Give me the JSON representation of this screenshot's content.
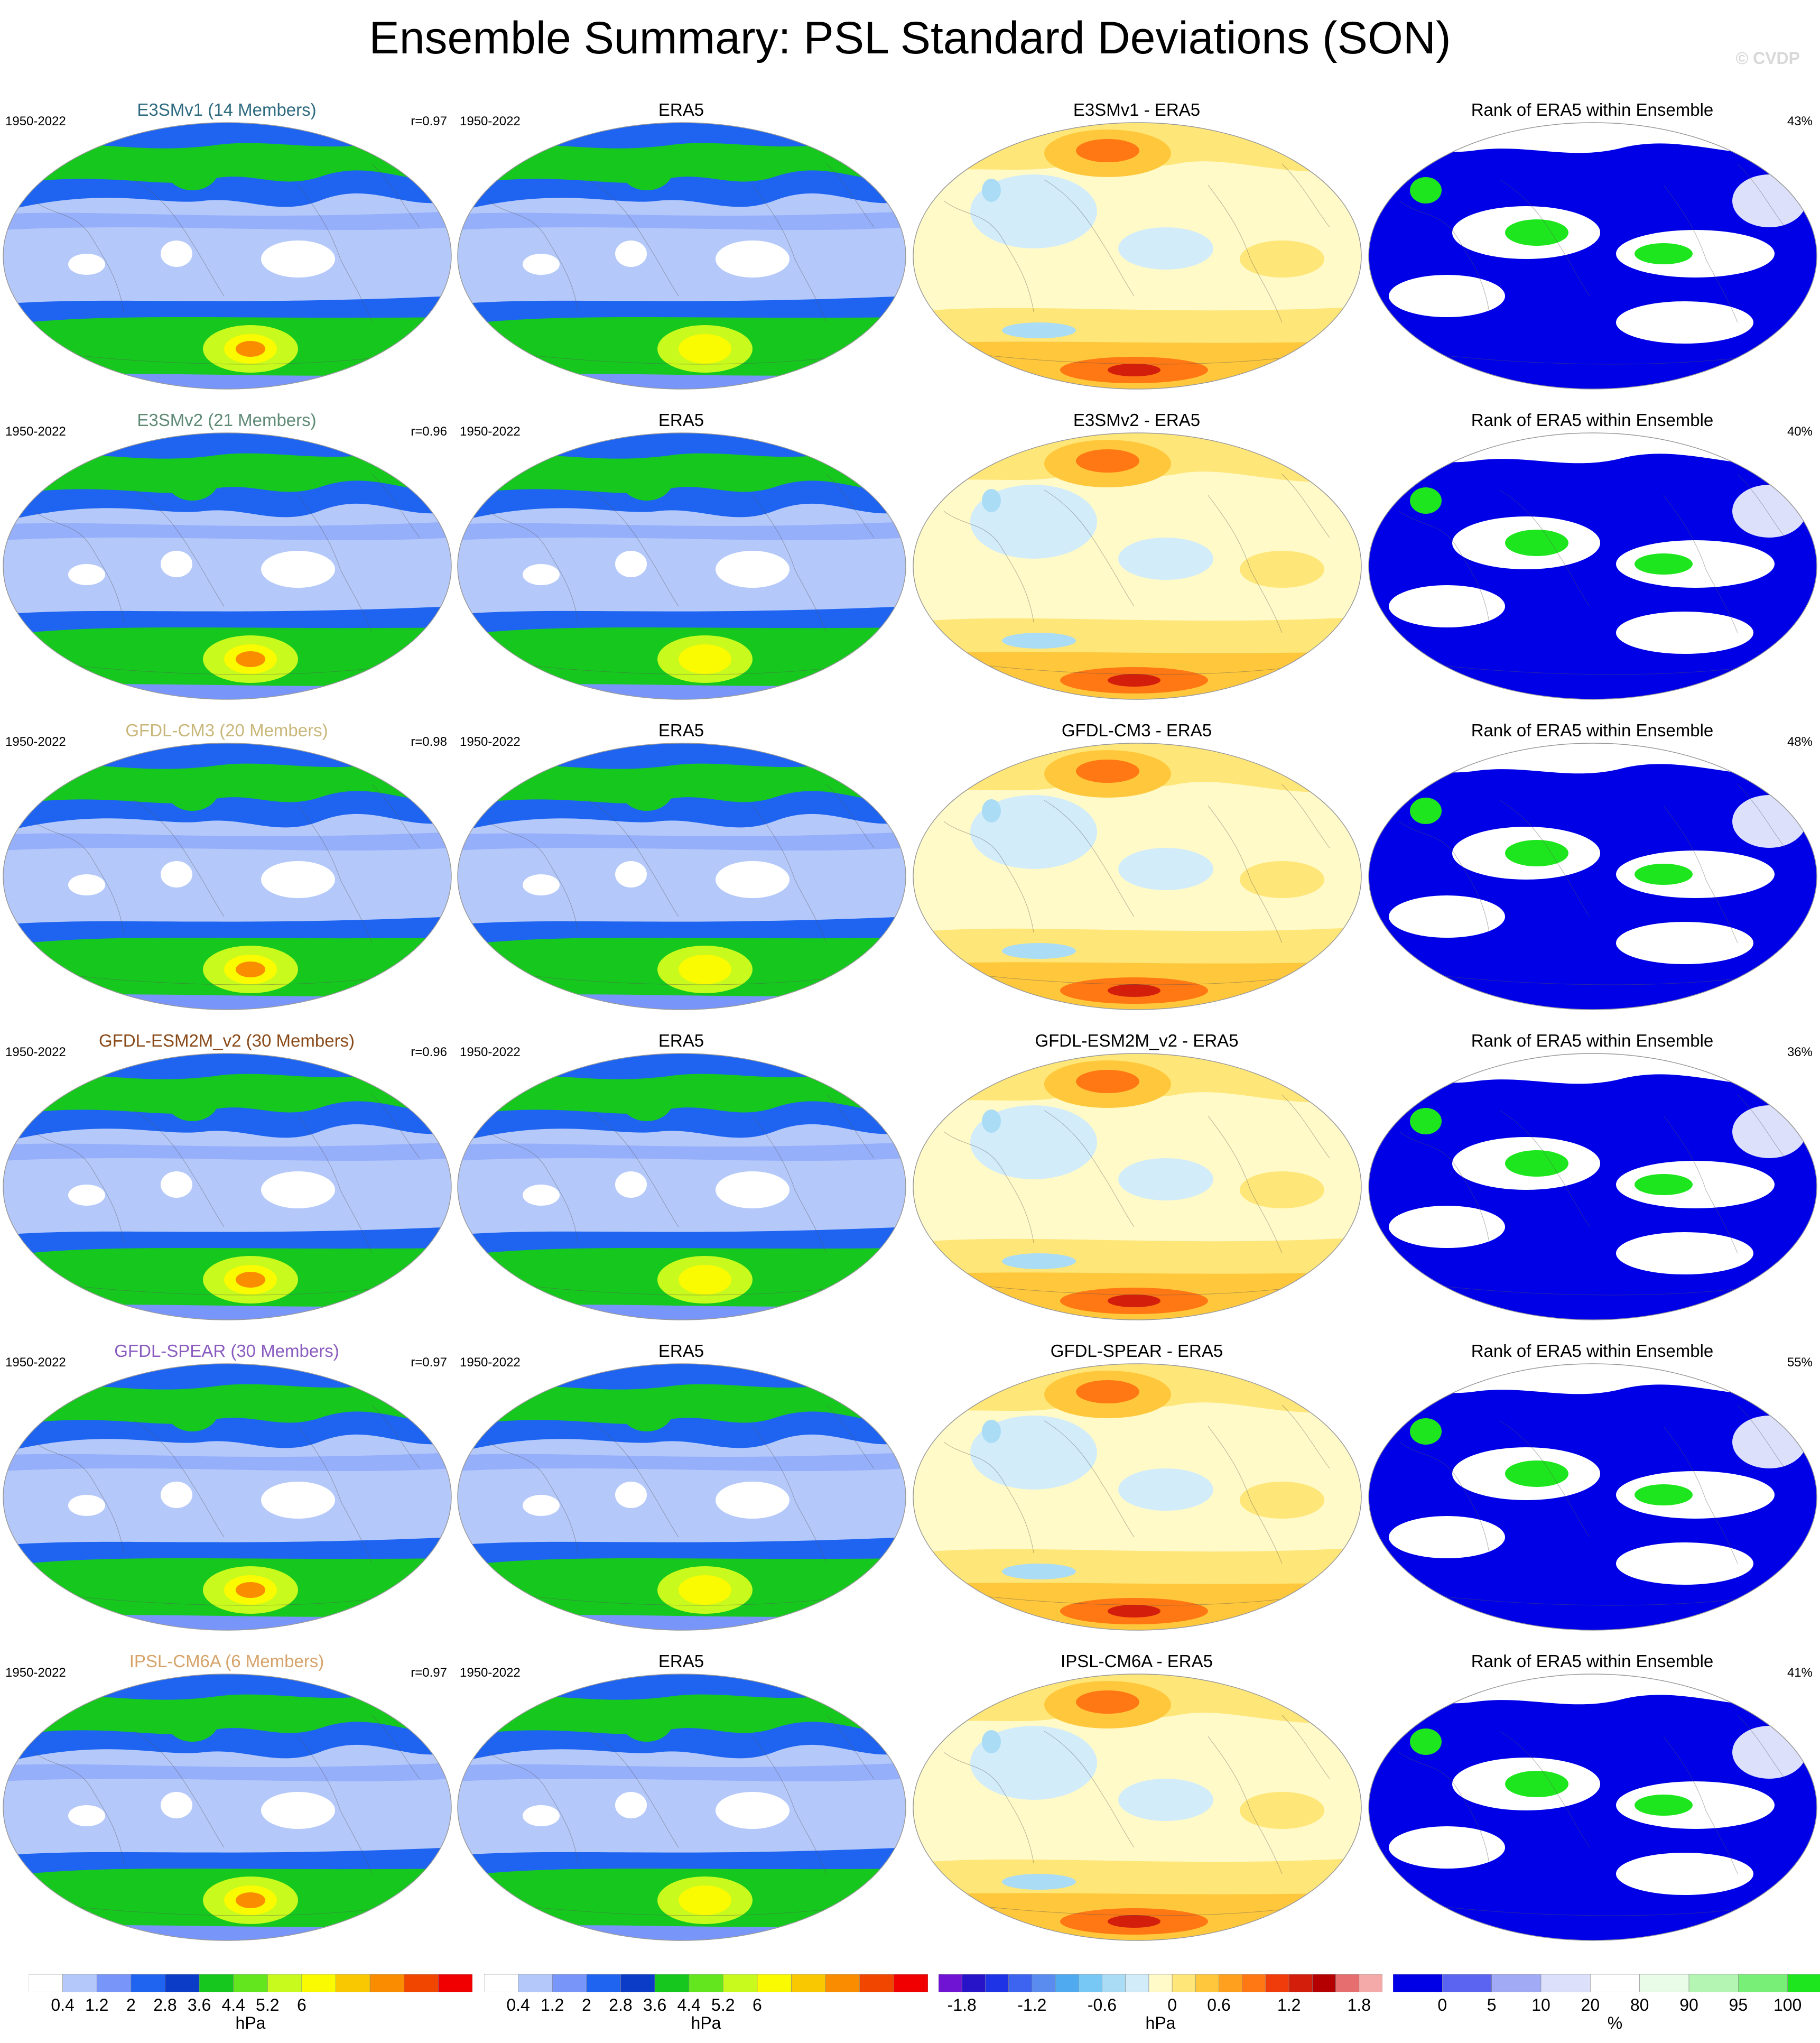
{
  "title": "Ensemble Summary: PSL Standard Deviations (SON)",
  "watermark": "© CVDP",
  "columns": [
    "model",
    "obs",
    "diff",
    "rank"
  ],
  "rows": [
    {
      "model_title": "E3SMv1 (14 Members)",
      "model_color": "#2e6b80",
      "period": "1950-2022",
      "r": "r=0.97",
      "obs_title": "ERA5",
      "diff_title": "E3SMv1 - ERA5",
      "rank_title": "Rank of ERA5 within Ensemble",
      "rank_pct": "43%"
    },
    {
      "model_title": "E3SMv2 (21 Members)",
      "model_color": "#5f8a75",
      "period": "1950-2022",
      "r": "r=0.96",
      "obs_title": "ERA5",
      "diff_title": "E3SMv2 - ERA5",
      "rank_title": "Rank of ERA5 within Ensemble",
      "rank_pct": "40%"
    },
    {
      "model_title": "GFDL-CM3 (20 Members)",
      "model_color": "#c9b77a",
      "period": "1950-2022",
      "r": "r=0.98",
      "obs_title": "ERA5",
      "diff_title": "GFDL-CM3 - ERA5",
      "rank_title": "Rank of ERA5 within Ensemble",
      "rank_pct": "48%"
    },
    {
      "model_title": "GFDL-ESM2M_v2 (30 Members)",
      "model_color": "#8a4a18",
      "period": "1950-2022",
      "r": "r=0.96",
      "obs_title": "ERA5",
      "diff_title": "GFDL-ESM2M_v2 - ERA5",
      "rank_title": "Rank of ERA5 within Ensemble",
      "rank_pct": "36%"
    },
    {
      "model_title": "GFDL-SPEAR (30 Members)",
      "model_color": "#8a5cc0",
      "period": "1950-2022",
      "r": "r=0.97",
      "obs_title": "ERA5",
      "diff_title": "GFDL-SPEAR - ERA5",
      "rank_title": "Rank of ERA5 within Ensemble",
      "rank_pct": "55%"
    },
    {
      "model_title": "IPSL-CM6A (6 Members)",
      "model_color": "#d6a36a",
      "period": "1950-2022",
      "r": "r=0.97",
      "obs_title": "ERA5",
      "diff_title": "IPSL-CM6A - ERA5",
      "rank_title": "Rank of ERA5 within Ensemble",
      "rank_pct": "41%"
    }
  ],
  "colorbars": [
    {
      "unit": "hPa",
      "colors": [
        "#ffffff",
        "#b4c8fa",
        "#7896fa",
        "#1e64f0",
        "#0a3cc8",
        "#16c81e",
        "#64e61e",
        "#c8fa1e",
        "#fafa00",
        "#fac800",
        "#fa8c00",
        "#f04600",
        "#f00000"
      ],
      "ticks": [
        "0.4",
        "1.2",
        "2",
        "2.8",
        "3.6",
        "4.4",
        "5.2",
        "6"
      ],
      "tick_slots": [
        1,
        2,
        3,
        4,
        5,
        6,
        7,
        8
      ]
    },
    {
      "unit": "hPa",
      "colors": [
        "#ffffff",
        "#b4c8fa",
        "#7896fa",
        "#1e64f0",
        "#0a3cc8",
        "#16c81e",
        "#64e61e",
        "#c8fa1e",
        "#fafa00",
        "#fac800",
        "#fa8c00",
        "#f04600",
        "#f00000"
      ],
      "ticks": [
        "0.4",
        "1.2",
        "2",
        "2.8",
        "3.6",
        "4.4",
        "5.2",
        "6"
      ],
      "tick_slots": [
        1,
        2,
        3,
        4,
        5,
        6,
        7,
        8
      ]
    },
    {
      "unit": "hPa",
      "colors": [
        "#6e14d2",
        "#2814c8",
        "#1e32e6",
        "#3c64f0",
        "#5a8cf0",
        "#50aaf0",
        "#78c8f5",
        "#aadcf5",
        "#d2ecfa",
        "#fffac8",
        "#ffe678",
        "#ffc83c",
        "#ffa01e",
        "#ff7814",
        "#f03c0a",
        "#d21e0a",
        "#b40000",
        "#e66e6e",
        "#f5aaaa"
      ],
      "ticks": [
        "-1.8",
        "-1.2",
        "-0.6",
        "0",
        "0.6",
        "1.2",
        "1.8"
      ],
      "tick_slots": [
        1,
        4,
        7,
        10,
        12,
        15,
        18
      ]
    },
    {
      "unit": "%",
      "colors": [
        "#0000e6",
        "#5a64f0",
        "#a0aaf5",
        "#dce0fa",
        "#ffffff",
        "#e8fce8",
        "#b4f5b4",
        "#78f078",
        "#1ee61e"
      ],
      "ticks": [
        "0",
        "5",
        "10",
        "20",
        "80",
        "90",
        "95",
        "100"
      ],
      "tick_slots": [
        1,
        2,
        3,
        4,
        5,
        6,
        7,
        8
      ]
    }
  ],
  "map_palettes": {
    "model": [
      "#ffffff",
      "#b4c8fa",
      "#7896fa",
      "#1e64f0",
      "#16c81e",
      "#c8fa1e",
      "#fafa00",
      "#fa8c00",
      "#f00000"
    ],
    "diff": [
      "#aadcf5",
      "#d2ecfa",
      "#fffac8",
      "#ffe678",
      "#ffc83c",
      "#ff7814",
      "#d21e0a"
    ],
    "rank": [
      "#0000e6",
      "#ffffff",
      "#dce0fa",
      "#1ee61e"
    ]
  }
}
